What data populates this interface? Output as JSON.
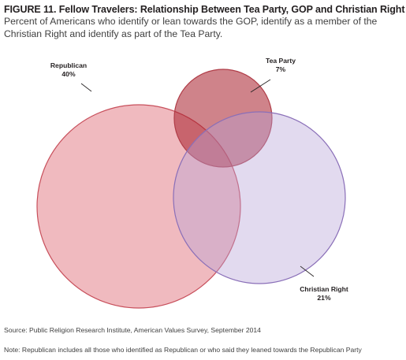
{
  "figure": {
    "title": "FIGURE 11. Fellow Travelers: Relationship Between Tea Party, GOP and Christian Right",
    "title_suffix": " .",
    "subtitle": "Percent of Americans who identify or lean towards the GOP, identify as a member of the Christian Right and identify as part of the Tea Party.",
    "source": "Source: Public Religion Research Institute, American Values Survey, September 2014",
    "note": "Note: Republican includes all those who identified as Republican or who said they leaned towards the Republican Party"
  },
  "chart_data": {
    "type": "venn",
    "sets": [
      {
        "name": "Republican",
        "value": 40,
        "value_label": "40%",
        "fill": "#d9535f",
        "stroke": "#c8505c"
      },
      {
        "name": "Tea Party",
        "value": 7,
        "value_label": "7%",
        "fill": "#a81d2a",
        "stroke": "#b03d48"
      },
      {
        "name": "Christian Right",
        "value": 21,
        "value_label": "21%",
        "fill": "#b7a3d6",
        "stroke": "#8a6fb8"
      }
    ],
    "units": "percent of Americans"
  }
}
